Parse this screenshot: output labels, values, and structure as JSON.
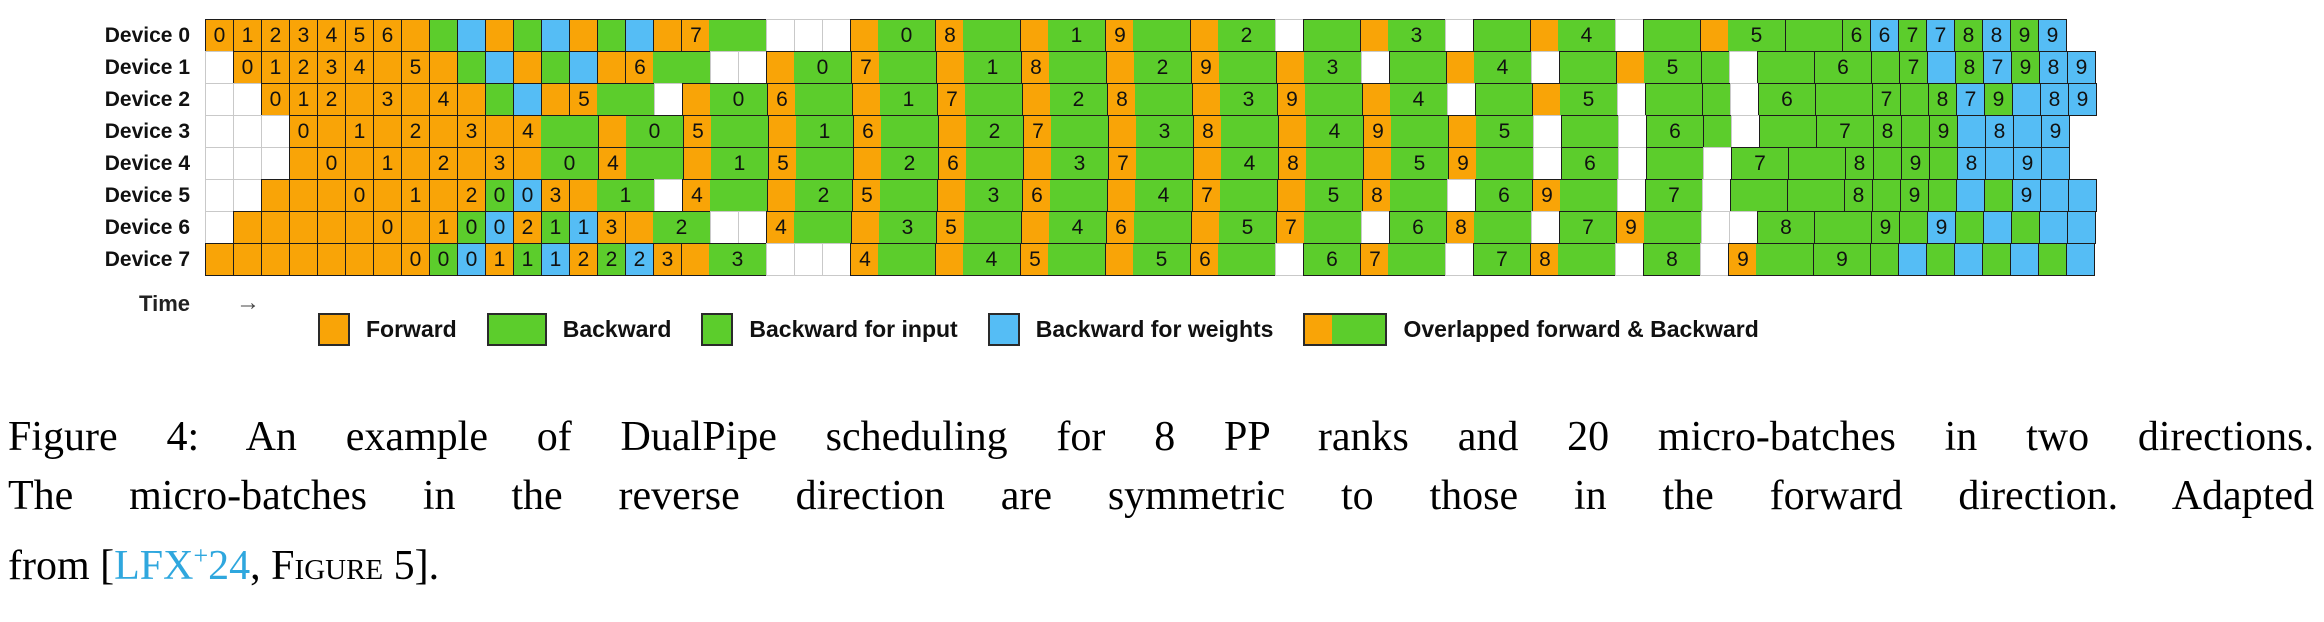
{
  "figure": {
    "time_label": "Time",
    "time_arrow": "→",
    "colors": {
      "forward": "#F9A407",
      "backward": "#5CCD2C",
      "weights": "#55BDF5",
      "link": "#2FA7DE"
    },
    "rows": [
      {
        "device": "Device 0",
        "cells": [
          "F0",
          "F1",
          "F2",
          "F3",
          "F4",
          "F5",
          "F6",
          "F",
          "G",
          "B",
          "F",
          "G",
          "B",
          "F",
          "G",
          "B",
          "F",
          "F7",
          "GG",
          "W",
          "W",
          "W",
          "F",
          "GG0",
          "F8",
          "GG",
          "F",
          "GG1",
          "F9",
          "GG",
          "F",
          "GG2",
          "W",
          "GG",
          "F",
          "GG3",
          "W",
          "GG",
          "F",
          "GG4",
          "W",
          "GG",
          "F",
          "GG5",
          "GG",
          "G6",
          "B6",
          "G7",
          "B7",
          "G8",
          "B8",
          "G9",
          "B9"
        ]
      },
      {
        "device": "Device 1",
        "cells": [
          "W",
          "F0",
          "F1",
          "F2",
          "F3",
          "F4",
          "F",
          "F5",
          "F",
          "G",
          "B",
          "F",
          "G",
          "B",
          "F",
          "F6",
          "GG",
          "W",
          "W",
          "F",
          "GG0",
          "F7",
          "GG",
          "F",
          "GG1",
          "F8",
          "GG",
          "F",
          "GG2",
          "F9",
          "GG",
          "F",
          "GG3",
          "W",
          "GG",
          "F",
          "GG4",
          "W",
          "GG",
          "F",
          "GG5",
          "G",
          "W",
          "GG",
          "GG6",
          "G",
          "G7",
          "B",
          "G8",
          "B7",
          "G9",
          "B8",
          "B9"
        ]
      },
      {
        "device": "Device 2",
        "cells": [
          "W",
          "W",
          "F0",
          "F1",
          "F2",
          "F",
          "F3",
          "F",
          "F4",
          "F",
          "G",
          "B",
          "F",
          "F5",
          "GG",
          "W",
          "F",
          "GG0",
          "F6",
          "GG",
          "F",
          "GG1",
          "F7",
          "GG",
          "F",
          "GG2",
          "F8",
          "GG",
          "F",
          "GG3",
          "F9",
          "GG",
          "F",
          "GG4",
          "W",
          "GG",
          "F",
          "GG5",
          "W",
          "GG",
          "G",
          "W",
          "GG6",
          "GG",
          "G7",
          "G",
          "G8",
          "B7",
          "G9",
          "B",
          "B8",
          "B9"
        ]
      },
      {
        "device": "Device 3",
        "cells": [
          "W",
          "W",
          "W",
          "F0",
          "F",
          "F1",
          "F",
          "F2",
          "F",
          "F3",
          "F",
          "F4",
          "GG",
          "F",
          "GG0",
          "F5",
          "GG",
          "F",
          "GG1",
          "F6",
          "GG",
          "F",
          "GG2",
          "F7",
          "GG",
          "F",
          "GG3",
          "F8",
          "GG",
          "F",
          "GG4",
          "F9",
          "GG",
          "F",
          "GG5",
          "W",
          "GG",
          "W",
          "GG6",
          "G",
          "W",
          "GG",
          "GG7",
          "G8",
          "G",
          "G9",
          "B",
          "B8",
          "B",
          "B9"
        ]
      },
      {
        "device": "Device 4",
        "cells": [
          "W",
          "W",
          "W",
          "F",
          "F0",
          "F",
          "F1",
          "F",
          "F2",
          "F",
          "F3",
          "F",
          "GG0",
          "F4",
          "GG",
          "F",
          "GG1",
          "F5",
          "GG",
          "F",
          "GG2",
          "F6",
          "GG",
          "F",
          "GG3",
          "F7",
          "GG",
          "F",
          "GG4",
          "F8",
          "GG",
          "F",
          "GG5",
          "F9",
          "GG",
          "W",
          "GG6",
          "W",
          "GG",
          "W",
          "GG7",
          "GG",
          "G8",
          "G",
          "G9",
          "G",
          "B8",
          "B",
          "B9",
          "B"
        ]
      },
      {
        "device": "Device 5",
        "cells": [
          "W",
          "W",
          "F",
          "F",
          "F",
          "F0",
          "F",
          "F1",
          "F",
          "F2",
          "G0",
          "B0",
          "F3",
          "F",
          "GG1",
          "W",
          "F4",
          "GG",
          "F",
          "GG2",
          "F5",
          "GG",
          "F",
          "GG3",
          "F6",
          "GG",
          "F",
          "GG4",
          "F7",
          "GG",
          "F",
          "GG5",
          "F8",
          "GG",
          "W",
          "GG6",
          "F9",
          "GG",
          "W",
          "GG7",
          "W",
          "GG",
          "GG",
          "G8",
          "G",
          "G9",
          "G",
          "B",
          "G",
          "B9",
          "B",
          "B"
        ]
      },
      {
        "device": "Device 6",
        "cells": [
          "W",
          "F",
          "F",
          "F",
          "F",
          "F",
          "F0",
          "F",
          "F1",
          "G0",
          "B0",
          "F2",
          "G1",
          "B1",
          "F3",
          "F",
          "GG2",
          "W",
          "W",
          "F4",
          "GG",
          "F",
          "GG3",
          "F5",
          "GG",
          "F",
          "GG4",
          "F6",
          "GG",
          "F",
          "GG5",
          "F7",
          "GG",
          "W",
          "GG6",
          "F8",
          "GG",
          "W",
          "GG7",
          "F9",
          "GG",
          "W",
          "W",
          "GG8",
          "GG",
          "G9",
          "G",
          "B9",
          "G",
          "B",
          "G",
          "B",
          "B"
        ]
      },
      {
        "device": "Device 7",
        "cells": [
          "F",
          "F",
          "F",
          "F",
          "F",
          "F",
          "F",
          "F0",
          "G0",
          "B0",
          "F1",
          "G1",
          "B1",
          "F2",
          "G2",
          "B2",
          "F3",
          "F",
          "GG3",
          "W",
          "W",
          "W",
          "F4",
          "GG",
          "F",
          "GG4",
          "F5",
          "GG",
          "F",
          "GG5",
          "F6",
          "GG",
          "W",
          "GG6",
          "F7",
          "GG",
          "W",
          "GG7",
          "F8",
          "GG",
          "W",
          "GG8",
          "W",
          "F9",
          "GG",
          "GG9",
          "G",
          "B",
          "G",
          "B",
          "G",
          "B",
          "G",
          "B"
        ]
      }
    ],
    "legend": [
      {
        "swatch": "forward",
        "label": "Forward"
      },
      {
        "swatch": "backward",
        "label": "Backward"
      },
      {
        "swatch": "bwd-input",
        "label": "Backward for input"
      },
      {
        "swatch": "bwd-weights",
        "label": "Backward for weights"
      },
      {
        "swatch": "overlapped",
        "label": "Overlapped forward & Backward"
      }
    ]
  },
  "caption": {
    "line1": "Figure 4: An example of DualPipe scheduling for 8 PP ranks and 20 micro-batches in two directions.",
    "line2": "The micro-batches in the reverse direction are symmetric to those in the forward direction. Adapted",
    "line3_prefix": "from [",
    "link_main": "LFX",
    "link_sup": "+",
    "link_year": "24",
    "line3_comma": ", ",
    "figure_ref": "Figure 5",
    "line3_end": "]."
  }
}
